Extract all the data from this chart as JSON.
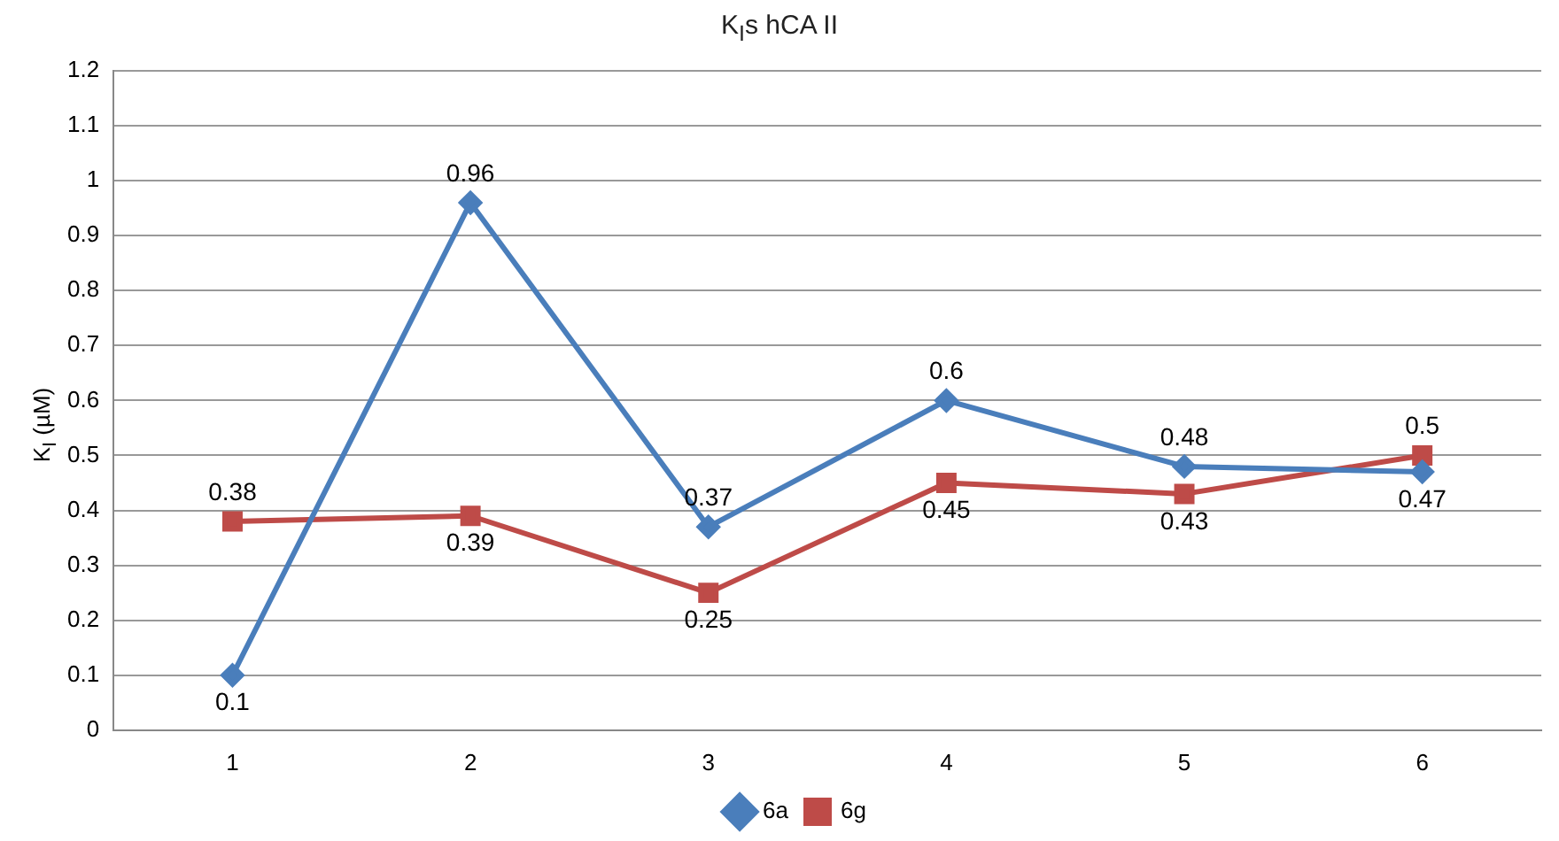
{
  "chart_data": {
    "type": "line",
    "title": "K$_{I}$s hCA II",
    "ylabel": "K$_{I}$ (µM)",
    "categories": [
      "1",
      "2",
      "3",
      "4",
      "5",
      "6"
    ],
    "series": [
      {
        "name": "6a",
        "color": "#4a7ebb",
        "marker": "diamond",
        "values": [
          0.1,
          0.96,
          0.37,
          0.6,
          0.48,
          0.47
        ]
      },
      {
        "name": "6g",
        "color": "#be4b48",
        "marker": "square",
        "values": [
          0.38,
          0.39,
          0.25,
          0.45,
          0.43,
          0.5
        ]
      }
    ],
    "ylim": [
      0,
      1.2
    ],
    "yticks": [
      0,
      0.1,
      0.2,
      0.3,
      0.4,
      0.5,
      0.6,
      0.7,
      0.8,
      0.9,
      1,
      1.1,
      1.2
    ],
    "grid": "y",
    "legend": "bottom",
    "data_labels": true,
    "line_style": "solid"
  }
}
